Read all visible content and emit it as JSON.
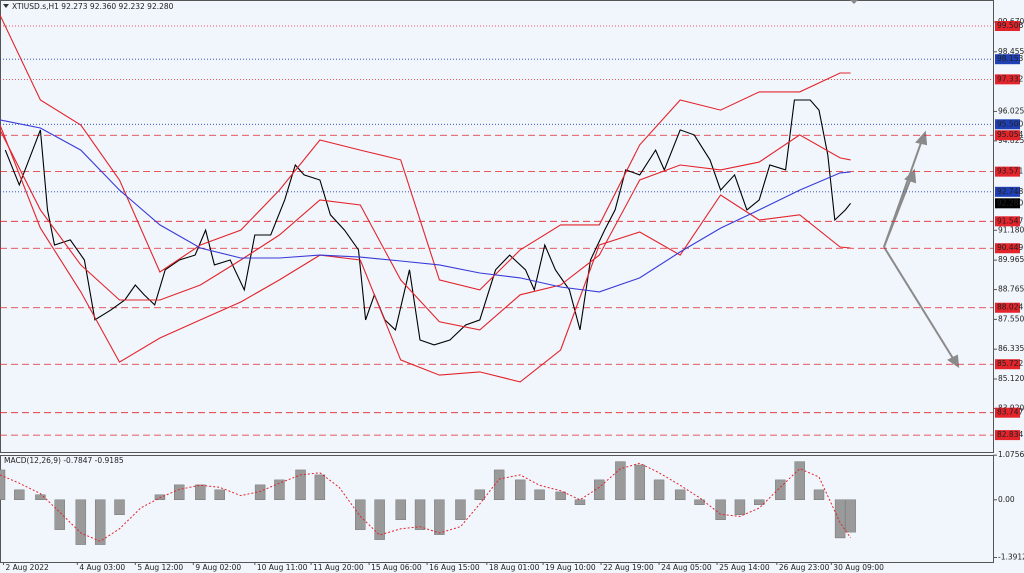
{
  "chart_data": [
    {
      "type": "line",
      "title": "XTIUSD.s,H1  92.273 92.360 92.232 92.280",
      "xlim": [
        0,
        565
      ],
      "ylim": [
        82.145,
        100.566
      ],
      "yticks": [
        {
          "value": 99.67,
          "label": "99.670"
        },
        {
          "value": 98.455,
          "label": "98.455"
        },
        {
          "value": 96.025,
          "label": "96.025"
        },
        {
          "value": 94.825,
          "label": "94.825"
        },
        {
          "value": 91.18,
          "label": "91.180"
        },
        {
          "value": 89.965,
          "label": "89.965"
        },
        {
          "value": 88.765,
          "label": "88.765"
        },
        {
          "value": 87.55,
          "label": "87.550"
        },
        {
          "value": 86.335,
          "label": "86.335"
        },
        {
          "value": 85.12,
          "label": "85.120"
        },
        {
          "value": 83.92,
          "label": "83.920"
        }
      ],
      "levels": [
        {
          "value": 99.506,
          "label": "99.506",
          "color": "#e3242b",
          "style": "dotted"
        },
        {
          "value": 98.153,
          "label": "98.153",
          "color": "#1f3fb4",
          "style": "dotted"
        },
        {
          "value": 97.332,
          "label": "97.332",
          "color": "#e3242b",
          "style": "dotted"
        },
        {
          "value": 95.5,
          "label": "95.500",
          "color": "#1f3fb4",
          "style": "dotted"
        },
        {
          "value": 95.054,
          "label": "95.054",
          "color": "#e3242b",
          "style": "dashed"
        },
        {
          "value": 93.571,
          "label": "93.571",
          "color": "#e3242b",
          "style": "dashed"
        },
        {
          "value": 92.748,
          "label": "92.748",
          "color": "#1f3fb4",
          "style": "dotted"
        },
        {
          "value": 91.547,
          "label": "91.547",
          "color": "#e3242b",
          "style": "dashed"
        },
        {
          "value": 90.449,
          "label": "90.449",
          "color": "#e3242b",
          "style": "dashed"
        },
        {
          "value": 88.024,
          "label": "88.024",
          "color": "#e3242b",
          "style": "dashed"
        },
        {
          "value": 85.722,
          "label": "85.722",
          "color": "#e3242b",
          "style": "dashed"
        },
        {
          "value": 83.747,
          "label": "83.747",
          "color": "#e3242b",
          "style": "dashed"
        },
        {
          "value": 82.834,
          "label": "82.834",
          "color": "#e3242b",
          "style": "dashed"
        }
      ],
      "last": {
        "value": 92.28,
        "label": "92.280",
        "color": "#000000"
      },
      "series": [
        {
          "color": "#000000",
          "x": [
            3,
            11,
            23,
            27,
            31,
            40,
            48,
            54,
            63,
            71,
            77,
            82,
            88,
            94,
            102,
            111,
            117,
            122,
            131,
            139,
            145,
            154,
            162,
            168,
            173,
            182,
            188,
            196,
            204,
            208,
            213,
            219,
            225,
            233,
            239,
            247,
            256,
            265,
            273,
            282,
            290,
            299,
            304,
            310,
            316,
            324,
            330,
            336,
            344,
            350,
            356,
            364,
            373,
            378,
            387,
            395,
            404,
            410,
            418,
            425,
            432,
            438,
            447,
            452,
            461,
            466,
            471,
            475,
            481,
            484
          ],
          "values": [
            94.45,
            93.03,
            95.27,
            92.01,
            90.58,
            90.79,
            89.97,
            87.53,
            87.93,
            88.34,
            88.95,
            88.55,
            88.14,
            89.57,
            89.97,
            90.17,
            91.19,
            89.77,
            89.97,
            88.75,
            90.99,
            90.99,
            92.42,
            93.84,
            93.44,
            93.23,
            91.81,
            91.19,
            90.38,
            87.53,
            88.55,
            87.53,
            87.12,
            89.57,
            86.71,
            86.51,
            86.71,
            87.32,
            87.53,
            89.57,
            90.17,
            89.57,
            88.75,
            90.58,
            89.57,
            88.75,
            87.12,
            89.97,
            91.19,
            92.01,
            93.64,
            93.44,
            94.45,
            93.64,
            95.27,
            95.07,
            94.05,
            92.82,
            93.44,
            92.01,
            92.42,
            93.84,
            93.64,
            96.49,
            96.49,
            96.08,
            94.25,
            91.6,
            92.01,
            92.28
          ]
        },
        {
          "color": "#e3242b",
          "x": [
            0,
            23,
            46,
            68,
            91,
            114,
            137,
            159,
            182,
            205,
            228,
            250,
            273,
            296,
            319,
            341,
            364,
            387,
            410,
            432,
            455,
            478,
            484
          ],
          "values": [
            99.95,
            96.49,
            95.47,
            93.23,
            89.48,
            90.58,
            91.19,
            92.82,
            94.86,
            94.45,
            94.05,
            89.16,
            88.75,
            90.38,
            91.4,
            91.4,
            94.66,
            96.49,
            96.08,
            96.82,
            96.82,
            97.59,
            97.59
          ]
        },
        {
          "color": "#e3242b",
          "x": [
            0,
            23,
            46,
            68,
            91,
            114,
            137,
            159,
            182,
            205,
            228,
            250,
            273,
            296,
            319,
            341,
            364,
            387,
            410,
            432,
            455,
            478,
            484
          ],
          "values": [
            95.27,
            92.01,
            89.77,
            88.34,
            88.34,
            88.95,
            89.97,
            90.99,
            92.42,
            92.21,
            89.16,
            87.45,
            87.12,
            88.55,
            88.95,
            90.17,
            93.23,
            93.84,
            93.64,
            93.96,
            95.07,
            94.13,
            94.05
          ]
        },
        {
          "color": "#e3242b",
          "x": [
            0,
            23,
            46,
            68,
            91,
            114,
            137,
            159,
            182,
            205,
            228,
            250,
            273,
            296,
            319,
            341,
            364,
            387,
            410,
            432,
            455,
            478,
            484
          ],
          "values": [
            95.47,
            91.27,
            88.67,
            85.81,
            86.79,
            87.53,
            88.26,
            89.16,
            90.17,
            89.97,
            85.9,
            85.28,
            85.41,
            85.0,
            86.3,
            90.58,
            91.11,
            90.17,
            92.62,
            91.6,
            91.81,
            90.5,
            90.46
          ]
        },
        {
          "color": "#3a3ad8",
          "x": [
            0,
            23,
            46,
            68,
            91,
            114,
            137,
            159,
            182,
            205,
            228,
            250,
            273,
            296,
            319,
            341,
            364,
            387,
            410,
            432,
            455,
            478,
            484
          ],
          "values": [
            95.68,
            95.35,
            94.45,
            92.82,
            91.4,
            90.46,
            90.05,
            90.05,
            90.17,
            90.09,
            89.93,
            89.77,
            89.44,
            89.24,
            88.87,
            88.67,
            89.24,
            90.3,
            91.27,
            92.01,
            92.82,
            93.52,
            93.56
          ]
        }
      ]
    },
    {
      "type": "bar",
      "title": "MACD(12,26,9) -0.7847 -0.9185",
      "xlim": [
        0,
        565
      ],
      "ylim": [
        -1.5,
        1.08
      ],
      "yticks": [
        1.0756,
        {
          "value": 0,
          "label": "0.00"
        },
        -1.3912
      ],
      "xticks": [
        {
          "value": 2,
          "label": "2 Aug 2022"
        },
        {
          "value": 44,
          "label": "4 Aug 03:00"
        },
        {
          "value": 77,
          "label": "5 Aug 12:00"
        },
        {
          "value": 110,
          "label": "9 Aug 02:00"
        },
        {
          "value": 145,
          "label": "10 Aug 11:00"
        },
        {
          "value": 177,
          "label": "11 Aug 20:00"
        },
        {
          "value": 210,
          "label": "15 Aug 06:00"
        },
        {
          "value": 243,
          "label": "16 Aug 15:00"
        },
        {
          "value": 277,
          "label": "18 Aug 01:00"
        },
        {
          "value": 309,
          "label": "19 Aug 10:00"
        },
        {
          "value": 342,
          "label": "22 Aug 19:00"
        },
        {
          "value": 375,
          "label": "24 Aug 05:00"
        },
        {
          "value": 408,
          "label": "25 Aug 14:00"
        },
        {
          "value": 442,
          "label": "26 Aug 23:00"
        },
        {
          "value": 473,
          "label": "30 Aug 09:00"
        }
      ],
      "series": [
        {
          "color": "#9a9a9a",
          "x": [
            0,
            11,
            23,
            34,
            46,
            57,
            68,
            80,
            91,
            102,
            114,
            125,
            137,
            148,
            159,
            171,
            182,
            193,
            205,
            216,
            228,
            239,
            250,
            262,
            273,
            284,
            296,
            307,
            319,
            330,
            341,
            353,
            364,
            375,
            387,
            398,
            410,
            421,
            432,
            444,
            455,
            466,
            478,
            484
          ],
          "values": [
            0.72,
            0.24,
            0.12,
            -0.72,
            -1.08,
            -1.08,
            -0.36,
            0,
            0.12,
            0.36,
            0.36,
            0.24,
            0,
            0.36,
            0.48,
            0.72,
            0.6,
            0,
            -0.72,
            -0.96,
            -0.48,
            -0.72,
            -0.84,
            -0.48,
            0.24,
            0.72,
            0.48,
            0.24,
            0.19,
            -0.12,
            0.48,
            0.92,
            0.84,
            0.48,
            0.24,
            -0.12,
            -0.48,
            -0.36,
            -0.12,
            0.48,
            0.92,
            0.24,
            -0.92,
            -0.78
          ]
        },
        {
          "type": "line",
          "color": "#e3242b",
          "x": [
            0,
            11,
            23,
            34,
            46,
            57,
            68,
            80,
            91,
            102,
            114,
            125,
            137,
            148,
            159,
            171,
            182,
            193,
            205,
            216,
            228,
            239,
            250,
            262,
            273,
            284,
            296,
            307,
            319,
            330,
            341,
            353,
            364,
            375,
            387,
            398,
            410,
            421,
            432,
            444,
            455,
            466,
            478,
            484
          ],
          "values": [
            0.6,
            0.4,
            0.15,
            -0.3,
            -0.8,
            -1.0,
            -0.7,
            -0.2,
            0.05,
            0.25,
            0.35,
            0.3,
            0.1,
            0.2,
            0.4,
            0.6,
            0.65,
            0.3,
            -0.4,
            -0.85,
            -0.7,
            -0.65,
            -0.8,
            -0.65,
            -0.1,
            0.5,
            0.6,
            0.35,
            0.22,
            0,
            0.3,
            0.75,
            0.88,
            0.65,
            0.35,
            0.05,
            -0.35,
            -0.4,
            -0.2,
            0.3,
            0.75,
            0.55,
            -0.55,
            -0.92
          ]
        }
      ]
    }
  ]
}
